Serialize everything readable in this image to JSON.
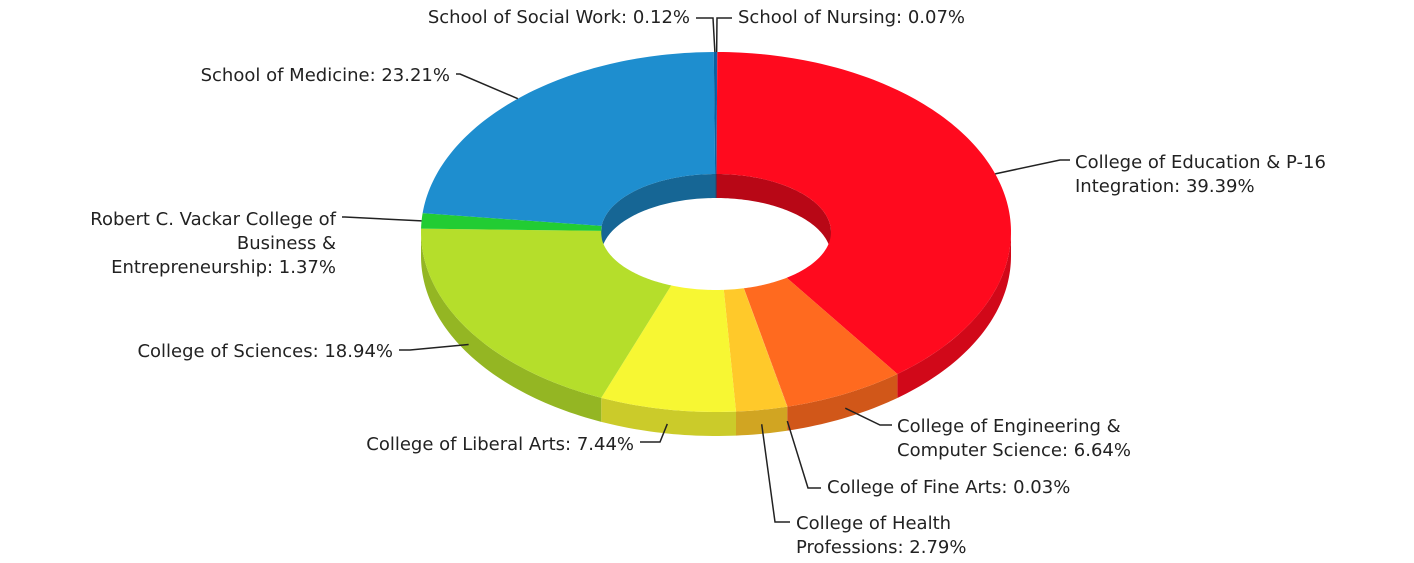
{
  "chart_data": {
    "type": "pie",
    "donut": true,
    "categories": [
      "School of Nursing: 0.07%",
      "College of Education & P-16\nIntegration: 39.39%",
      "College of Engineering &\nComputer Science: 6.64%",
      "College of Fine Arts: 0.03%",
      "College of Health\nProfessions: 2.79%",
      "College of Liberal Arts: 7.44%",
      "College of Sciences: 18.94%",
      "Robert C. Vackar College of\nBusiness &\nEntrepreneurship: 1.37%",
      "School of Medicine: 23.21%",
      "School of Social Work: 0.12%"
    ],
    "values": [
      0.07,
      39.39,
      6.64,
      0.03,
      2.79,
      7.44,
      18.94,
      1.37,
      23.21,
      0.12
    ],
    "colors": [
      "#1560a8",
      "#ff0a1e",
      "#ff6a1f",
      "#ff9a30",
      "#ffc92a",
      "#f7f733",
      "#b5de2b",
      "#22cc33",
      "#1e8ecf",
      "#0b5f9e"
    ]
  }
}
